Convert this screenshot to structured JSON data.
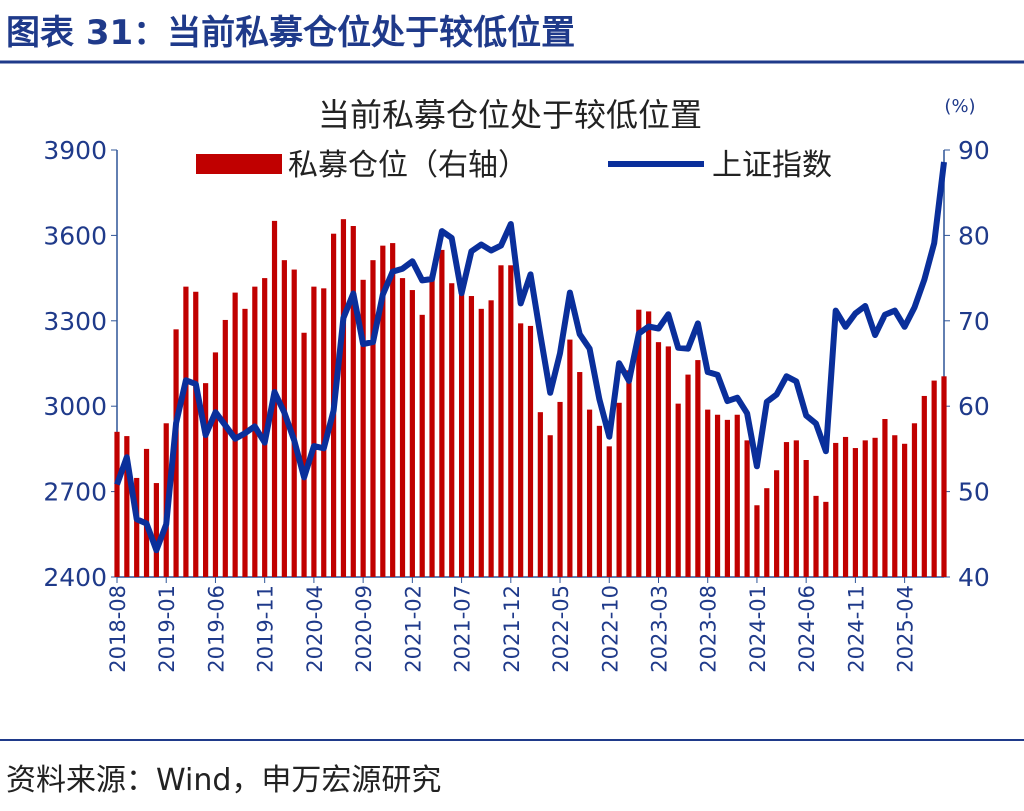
{
  "header": {
    "title": "图表 31：当前私募仓位处于较低位置"
  },
  "footer": {
    "source": "资料来源：Wind，申万宏源研究"
  },
  "chart_data": {
    "type": "combo",
    "title": "当前私募仓位处于较低位置",
    "y2_unit": "(%)",
    "categories": [
      "2018-08",
      null,
      null,
      null,
      null,
      "2019-01",
      null,
      null,
      null,
      null,
      "2019-06",
      null,
      null,
      null,
      null,
      "2019-11",
      null,
      null,
      null,
      null,
      "2020-04",
      null,
      null,
      null,
      null,
      "2020-09",
      null,
      null,
      null,
      null,
      "2021-02",
      null,
      null,
      null,
      null,
      "2021-07",
      null,
      null,
      null,
      null,
      "2021-12",
      null,
      null,
      null,
      null,
      "2022-05",
      null,
      null,
      null,
      null,
      "2022-10",
      null,
      null,
      null,
      null,
      "2023-03",
      null,
      null,
      null,
      null,
      "2023-08",
      null,
      null,
      null,
      null,
      "2024-01",
      null,
      null,
      null,
      null,
      "2024-06",
      null,
      null,
      null,
      null,
      "2024-11",
      null,
      null,
      null,
      null,
      "2025-04",
      null,
      null,
      null,
      null
    ],
    "series": [
      {
        "name": "私募仓位（右轴）",
        "type": "bar",
        "axis": "y2",
        "color": "#c00000",
        "values": [
          57,
          56.5,
          51.6,
          55,
          51,
          58,
          69,
          74,
          73.4,
          62.7,
          66.3,
          70.1,
          73.3,
          71.4,
          74,
          75,
          81.7,
          77.1,
          76,
          68.6,
          74,
          73.8,
          80.2,
          81.9,
          81.1,
          74.8,
          77.1,
          78.8,
          79.1,
          75,
          73.6,
          70.7,
          75.4,
          78.3,
          74.4,
          74.3,
          72.9,
          71.4,
          72.4,
          76.5,
          76.5,
          69.7,
          69.4,
          59.3,
          56.6,
          60.5,
          67.8,
          64,
          59.6,
          57.7,
          55.3,
          60.4,
          64.2,
          71.3,
          71.1,
          67.5,
          67,
          60.3,
          63.7,
          65.4,
          59.6,
          59,
          58.4,
          59,
          56,
          48.4,
          50.4,
          52.5,
          55.8,
          56,
          53.7,
          49.5,
          48.8,
          55.7,
          56.4,
          55.1,
          56,
          56.3,
          58.5,
          56.6,
          55.6,
          58,
          61.2,
          63,
          63.5
        ]
      },
      {
        "name": "上证指数",
        "type": "line",
        "axis": "y",
        "color": "#0a2f9b",
        "values": [
          2725,
          2821,
          2603,
          2588,
          2494,
          2585,
          2941,
          3091,
          3078,
          2899,
          2979,
          2933,
          2886,
          2905,
          2929,
          2872,
          3050,
          2977,
          2880,
          2750,
          2860,
          2852,
          2985,
          3310,
          3396,
          3218,
          3225,
          3392,
          3473,
          3483,
          3509,
          3442,
          3447,
          3615,
          3591,
          3397,
          3544,
          3568,
          3547,
          3564,
          3640,
          3361,
          3463,
          3252,
          3047,
          3186,
          3399,
          3253,
          3202,
          3024,
          2893,
          3151,
          3089,
          3255,
          3280,
          3273,
          3323,
          3205,
          3202,
          3291,
          3120,
          3110,
          3018,
          3030,
          2975,
          2789,
          3015,
          3041,
          3105,
          3087,
          2967,
          2939,
          2842,
          3336,
          3279,
          3326,
          3352,
          3250,
          3321,
          3336,
          3279,
          3347,
          3444,
          3573,
          3858
        ]
      }
    ],
    "ylim": [
      2400,
      3900
    ],
    "yticks": [
      2400,
      2700,
      3000,
      3300,
      3600,
      3900
    ],
    "y2lim": [
      40,
      90
    ],
    "y2ticks": [
      40,
      50,
      60,
      70,
      80,
      90
    ]
  }
}
